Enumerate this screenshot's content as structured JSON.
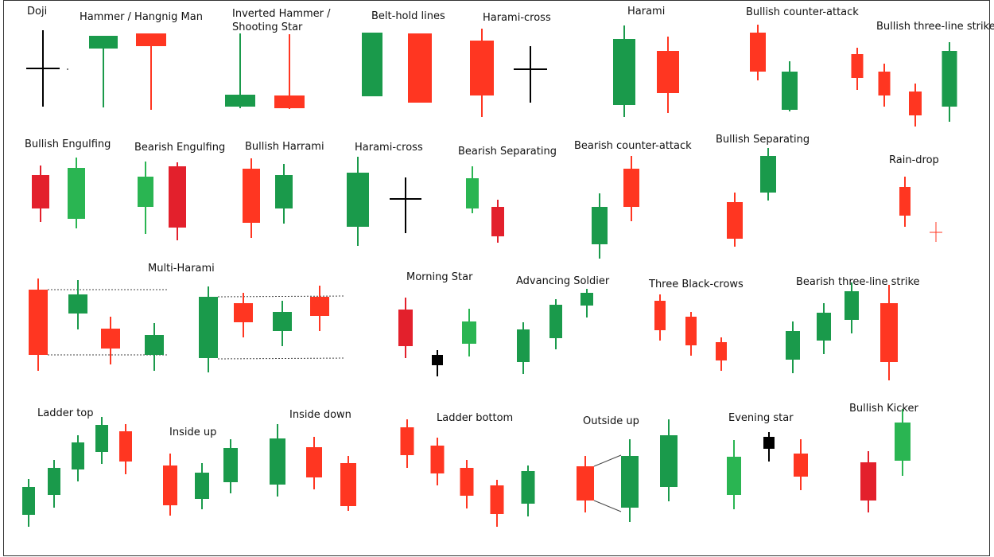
{
  "colors": {
    "bull": "#1a9a4b",
    "bear": "#ff3621",
    "bull_light": "#2ab552",
    "bear_dark": "#e3202c",
    "doji": "#000000",
    "frame": "#333333",
    "guide": "#444444"
  },
  "patterns": [
    {
      "id": "doji",
      "label": "Doji"
    },
    {
      "id": "hammer",
      "label": "Hammer / Hangnig Man"
    },
    {
      "id": "inverted-hammer",
      "label": "Inverted Hammer /"
    },
    {
      "id": "shooting-star",
      "label": "Shooting Star"
    },
    {
      "id": "belt-hold",
      "label": "Belt-hold lines"
    },
    {
      "id": "harami-cross-1",
      "label": "Harami-cross"
    },
    {
      "id": "harami",
      "label": "Harami"
    },
    {
      "id": "bullish-counter-attack",
      "label": "Bullish counter-attack"
    },
    {
      "id": "bullish-three-line-strike",
      "label": "Bullish three-line strike"
    },
    {
      "id": "bullish-engulfing",
      "label": "Bullish Engulfing"
    },
    {
      "id": "bearish-engulfing",
      "label": "Bearish Engulfing"
    },
    {
      "id": "bullish-harrami",
      "label": "Bullish Harrami"
    },
    {
      "id": "harami-cross-2",
      "label": "Harami-cross"
    },
    {
      "id": "bearish-separating",
      "label": "Bearish Separating"
    },
    {
      "id": "bearish-counter-attack",
      "label": "Bearish counter-attack"
    },
    {
      "id": "bullish-separating",
      "label": "Bullish Separating"
    },
    {
      "id": "rain-drop",
      "label": "Rain-drop"
    },
    {
      "id": "multi-harami",
      "label": "Multi-Harami"
    },
    {
      "id": "morning-star",
      "label": "Morning Star"
    },
    {
      "id": "advancing-soldier",
      "label": "Advancing Soldier"
    },
    {
      "id": "three-black-crows",
      "label": "Three Black-crows"
    },
    {
      "id": "bearish-three-line-strike",
      "label": "Bearish three-line strike"
    },
    {
      "id": "ladder-top",
      "label": "Ladder top"
    },
    {
      "id": "inside-up",
      "label": "Inside up"
    },
    {
      "id": "inside-down",
      "label": "Inside down"
    },
    {
      "id": "ladder-bottom",
      "label": "Ladder bottom"
    },
    {
      "id": "outside-up",
      "label": "Outside up"
    },
    {
      "id": "evening-star",
      "label": "Evening star"
    },
    {
      "id": "bullish-kicker",
      "label": "Bullish Kicker"
    }
  ]
}
